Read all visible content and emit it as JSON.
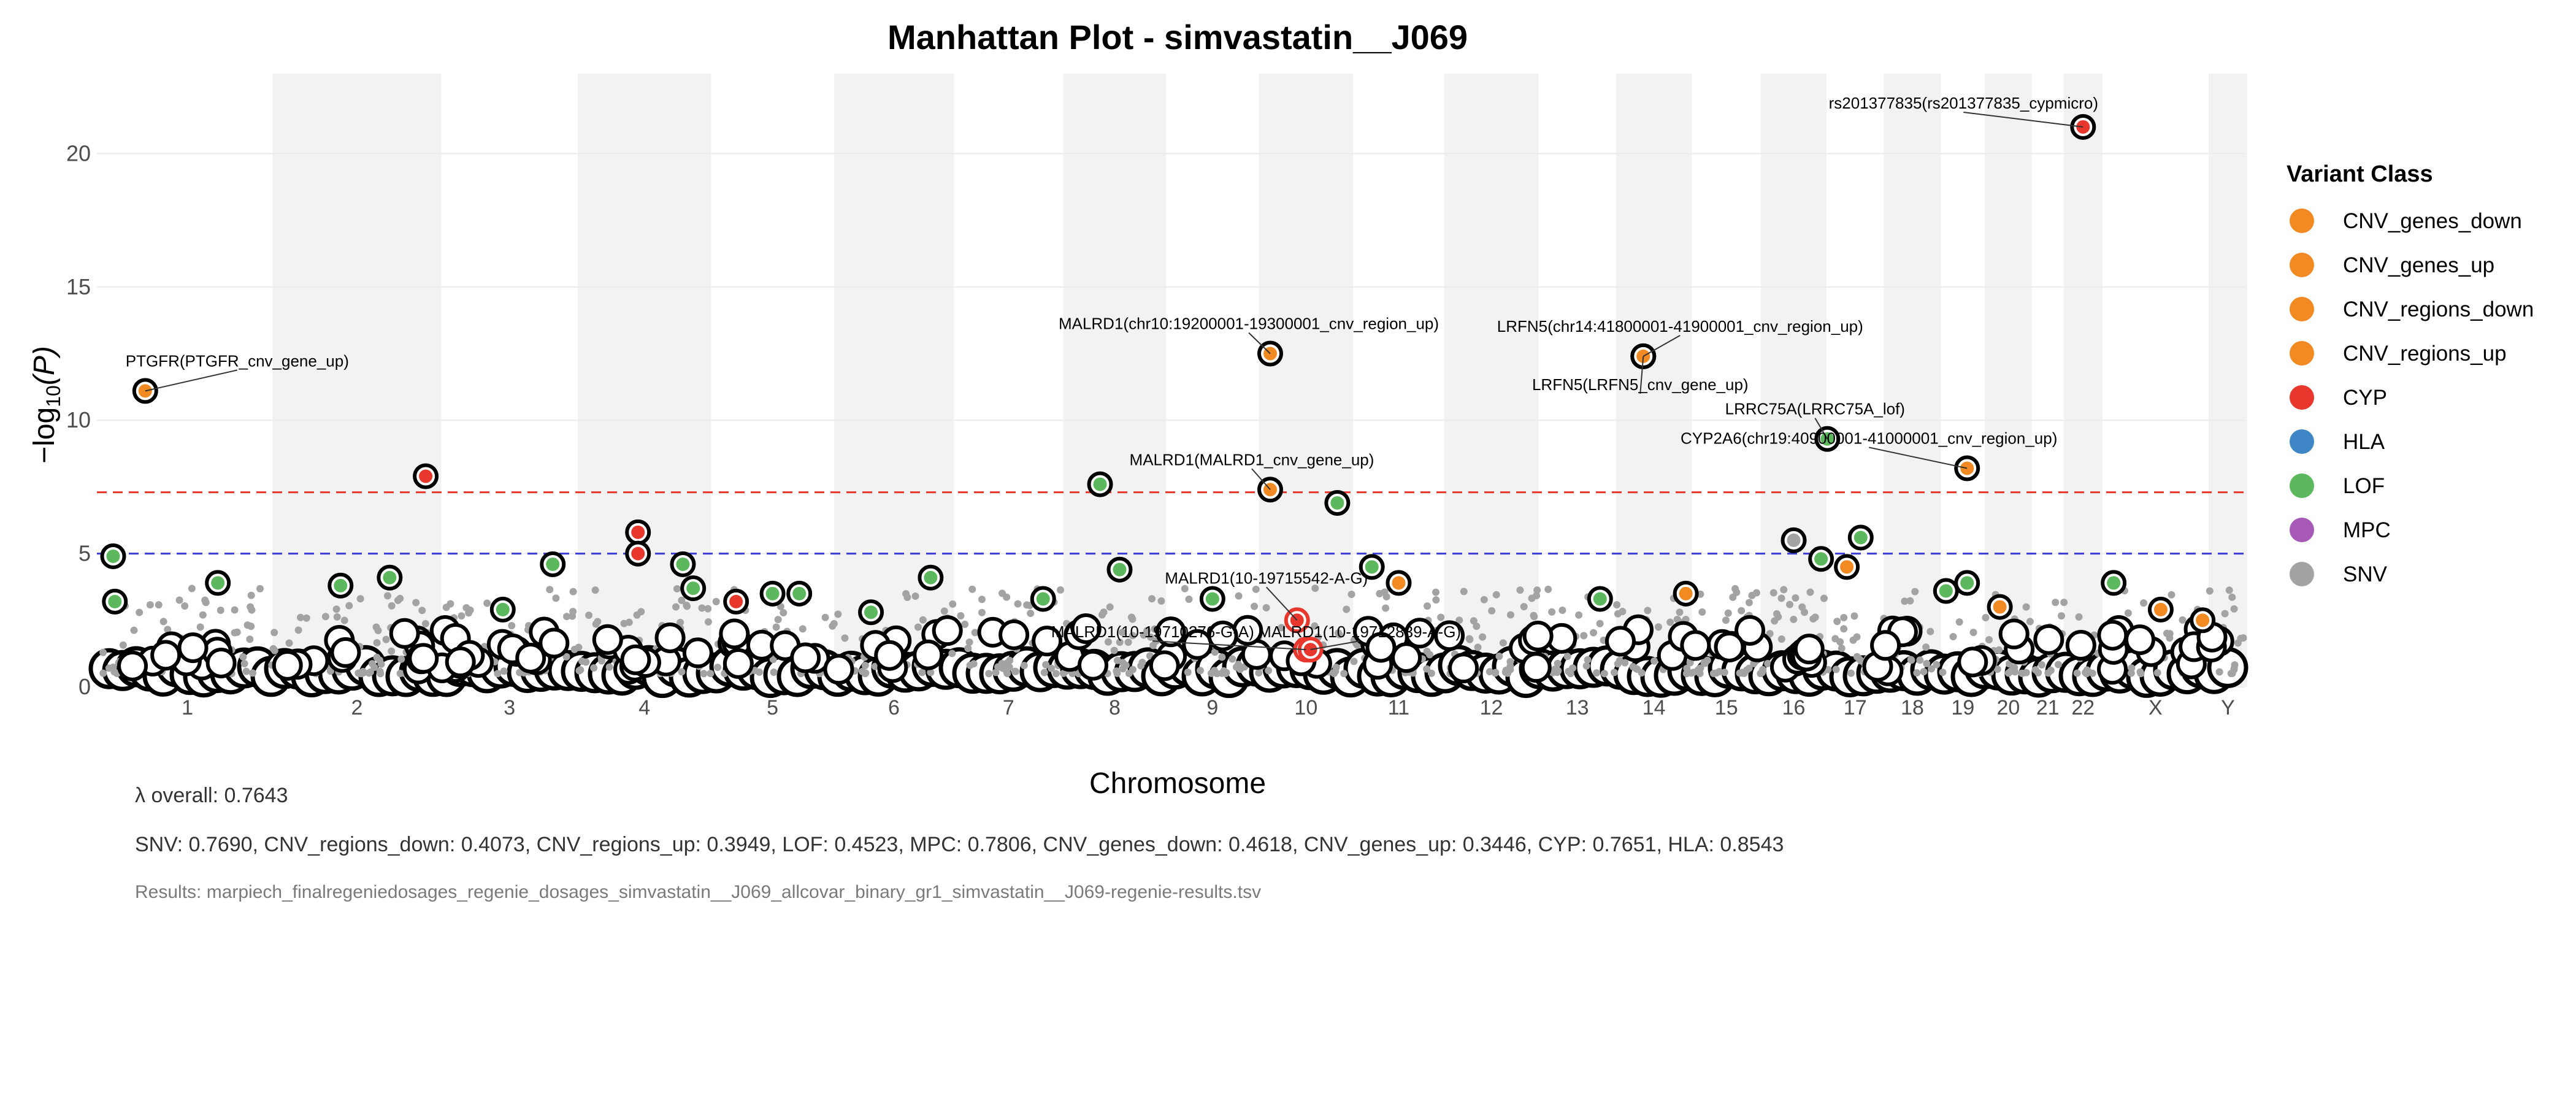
{
  "chart_data": {
    "type": "scatter",
    "title": "Manhattan Plot - simvastatin__J069",
    "xlabel": "Chromosome",
    "ylabel_prefix": "−log",
    "ylabel_sub": "10",
    "ylabel_suffix": "(P)",
    "ylim": [
      0,
      23
    ],
    "yticks": [
      0,
      5,
      10,
      15,
      20
    ],
    "chromosomes": [
      "1",
      "2",
      "3",
      "4",
      "5",
      "6",
      "7",
      "8",
      "9",
      "10",
      "11",
      "12",
      "13",
      "14",
      "15",
      "16",
      "17",
      "18",
      "19",
      "20",
      "21",
      "22",
      "X",
      "Y"
    ],
    "chrom_spans": [
      1.0,
      0.97,
      0.8,
      0.76,
      0.72,
      0.68,
      0.64,
      0.58,
      0.54,
      0.53,
      0.53,
      0.53,
      0.45,
      0.42,
      0.4,
      0.36,
      0.33,
      0.31,
      0.25,
      0.25,
      0.18,
      0.2,
      0.62,
      0.2
    ],
    "thresholds": [
      {
        "name": "genome-wide",
        "y": 7.3,
        "color": "#e8382e"
      },
      {
        "name": "suggestive",
        "y": 5.0,
        "color": "#3b3bd6"
      }
    ],
    "legend": {
      "title": "Variant Class",
      "placement": "right",
      "items": [
        {
          "label": "CNV_genes_down",
          "color": "#f28a24"
        },
        {
          "label": "CNV_genes_up",
          "color": "#f28a24"
        },
        {
          "label": "CNV_regions_down",
          "color": "#f28a24"
        },
        {
          "label": "CNV_regions_up",
          "color": "#f28a24"
        },
        {
          "label": "CYP",
          "color": "#e8382e"
        },
        {
          "label": "HLA",
          "color": "#3f86c6"
        },
        {
          "label": "LOF",
          "color": "#5cb85c"
        },
        {
          "label": "MPC",
          "color": "#a65ab5"
        },
        {
          "label": "SNV",
          "color": "#a3a3a3"
        }
      ]
    },
    "highlighted_points": [
      {
        "chrom": "1",
        "pos": 0.06,
        "y": 4.9,
        "class": "LOF"
      },
      {
        "chrom": "1",
        "pos": 0.07,
        "y": 3.2,
        "class": "LOF"
      },
      {
        "chrom": "1",
        "pos": 0.25,
        "y": 11.1,
        "class": "CNV_genes_up",
        "label": "PTGFR(PTGFR_cnv_gene_up)"
      },
      {
        "chrom": "1",
        "pos": 0.68,
        "y": 3.9,
        "class": "LOF"
      },
      {
        "chrom": "2",
        "pos": 0.4,
        "y": 3.8,
        "class": "LOF"
      },
      {
        "chrom": "2",
        "pos": 0.7,
        "y": 4.1,
        "class": "LOF"
      },
      {
        "chrom": "2",
        "pos": 0.92,
        "y": 7.9,
        "class": "CYP"
      },
      {
        "chrom": "3",
        "pos": 0.45,
        "y": 2.9,
        "class": "LOF"
      },
      {
        "chrom": "3",
        "pos": 0.82,
        "y": 4.6,
        "class": "LOF"
      },
      {
        "chrom": "4",
        "pos": 0.45,
        "y": 5.8,
        "class": "CYP"
      },
      {
        "chrom": "4",
        "pos": 0.45,
        "y": 5.0,
        "class": "CYP"
      },
      {
        "chrom": "4",
        "pos": 0.8,
        "y": 4.6,
        "class": "LOF"
      },
      {
        "chrom": "4",
        "pos": 0.88,
        "y": 3.7,
        "class": "LOF"
      },
      {
        "chrom": "5",
        "pos": 0.2,
        "y": 3.2,
        "class": "CYP"
      },
      {
        "chrom": "5",
        "pos": 0.5,
        "y": 3.5,
        "class": "LOF"
      },
      {
        "chrom": "5",
        "pos": 0.72,
        "y": 3.5,
        "class": "LOF"
      },
      {
        "chrom": "6",
        "pos": 0.3,
        "y": 2.8,
        "class": "LOF"
      },
      {
        "chrom": "6",
        "pos": 0.82,
        "y": 4.1,
        "class": "LOF"
      },
      {
        "chrom": "7",
        "pos": 0.82,
        "y": 3.3,
        "class": "LOF"
      },
      {
        "chrom": "8",
        "pos": 0.35,
        "y": 7.6,
        "class": "LOF"
      },
      {
        "chrom": "8",
        "pos": 0.55,
        "y": 4.4,
        "class": "LOF"
      },
      {
        "chrom": "9",
        "pos": 0.5,
        "y": 3.3,
        "class": "LOF"
      },
      {
        "chrom": "10",
        "pos": 0.1,
        "y": 12.5,
        "class": "CNV_regions_up",
        "label": "MALRD1(chr10:19200001-19300001_cnv_region_up)"
      },
      {
        "chrom": "10",
        "pos": 0.1,
        "y": 7.4,
        "class": "CNV_genes_up",
        "label": "MALRD1(MALRD1_cnv_gene_up)"
      },
      {
        "chrom": "10",
        "pos": 0.4,
        "y": 2.5,
        "class": "CYP",
        "label": "MALRD1(10-19715542-A-G)"
      },
      {
        "chrom": "10",
        "pos": 0.5,
        "y": 1.4,
        "class": "CYP",
        "label": "MALRD1(10-19710276-G-A)"
      },
      {
        "chrom": "10",
        "pos": 0.55,
        "y": 1.4,
        "class": "CYP",
        "label": "MALRD1(10-19712839-A-G)"
      },
      {
        "chrom": "10",
        "pos": 0.85,
        "y": 6.9,
        "class": "LOF"
      },
      {
        "chrom": "11",
        "pos": 0.2,
        "y": 4.5,
        "class": "LOF"
      },
      {
        "chrom": "11",
        "pos": 0.5,
        "y": 3.9,
        "class": "CNV_regions_up"
      },
      {
        "chrom": "13",
        "pos": 0.8,
        "y": 3.3,
        "class": "LOF"
      },
      {
        "chrom": "14",
        "pos": 0.35,
        "y": 12.4,
        "class": "CNV_regions_up",
        "label": "LRFN5(chr14:41800001-41900001_cnv_region_up)"
      },
      {
        "chrom": "14",
        "pos": 0.35,
        "y": 12.4,
        "class": "CNV_genes_up",
        "label": "LRFN5(LRFN5_cnv_gene_up)"
      },
      {
        "chrom": "14",
        "pos": 0.95,
        "y": 3.5,
        "class": "CNV_regions_up"
      },
      {
        "chrom": "16",
        "pos": 0.5,
        "y": 5.5,
        "class": "SNV"
      },
      {
        "chrom": "16",
        "pos": 0.95,
        "y": 4.8,
        "class": "LOF"
      },
      {
        "chrom": "17",
        "pos": 0.0,
        "y": 9.3,
        "class": "LOF",
        "label": "LRRC75A(LRRC75A_lof)"
      },
      {
        "chrom": "17",
        "pos": 0.35,
        "y": 4.5,
        "class": "CNV_genes_up"
      },
      {
        "chrom": "17",
        "pos": 0.6,
        "y": 5.6,
        "class": "LOF"
      },
      {
        "chrom": "19",
        "pos": 0.1,
        "y": 3.6,
        "class": "LOF"
      },
      {
        "chrom": "19",
        "pos": 0.6,
        "y": 8.2,
        "class": "CNV_regions_up",
        "label": "CYP2A6(chr19:40900001-41000001_cnv_region_up)"
      },
      {
        "chrom": "19",
        "pos": 0.6,
        "y": 3.9,
        "class": "LOF"
      },
      {
        "chrom": "20",
        "pos": 0.3,
        "y": 3.0,
        "class": "CNV_regions_up"
      },
      {
        "chrom": "22",
        "pos": 0.5,
        "y": 21.0,
        "class": "CYP",
        "label": "rs201377835(rs201377835_cypmicro)"
      },
      {
        "chrom": "X",
        "pos": 0.1,
        "y": 3.9,
        "class": "LOF"
      },
      {
        "chrom": "X",
        "pos": 0.55,
        "y": 2.9,
        "class": "CNV_regions_up"
      },
      {
        "chrom": "X",
        "pos": 0.95,
        "y": 2.5,
        "class": "CNV_regions_up"
      }
    ],
    "grid": true
  },
  "captions": {
    "lambda": "λ overall: 0.7643",
    "classes": "SNV: 0.7690, CNV_regions_down: 0.4073, CNV_regions_up: 0.3949, LOF: 0.4523, MPC: 0.7806, CNV_genes_down: 0.4618, CNV_genes_up: 0.3446, CYP: 0.7651, HLA: 0.8543",
    "results": "Results: marpiech_finalregeniedosages_regenie_dosages_simvastatin__J069_allcovar_binary_gr1_simvastatin__J069-regenie-results.tsv"
  }
}
